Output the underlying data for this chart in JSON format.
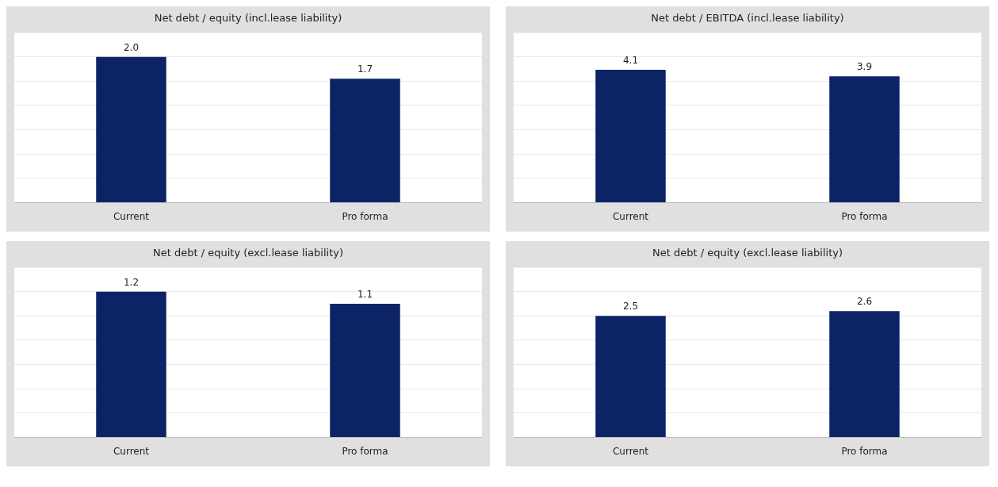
{
  "chart_data": [
    {
      "type": "bar",
      "title": "Net debt / equity (incl.lease liability)",
      "categories": [
        "Current",
        "Pro forma"
      ],
      "values": [
        2.0,
        1.7
      ],
      "value_labels": [
        "2.0",
        "1.7"
      ],
      "color": "#0c2366",
      "grid": "y",
      "tick_labels": "x"
    },
    {
      "type": "bar",
      "title": "Net debt / EBITDA (incl.lease liability)",
      "categories": [
        "Current",
        "Pro forma"
      ],
      "values": [
        4.1,
        3.9
      ],
      "value_labels": [
        "4.1",
        "3.9"
      ],
      "color": "#0c2366",
      "grid": "y",
      "tick_labels": "x"
    },
    {
      "type": "bar",
      "title": "Net debt / equity (excl.lease liability)",
      "categories": [
        "Current",
        "Pro forma"
      ],
      "values": [
        1.2,
        1.1
      ],
      "value_labels": [
        "1.2",
        "1.1"
      ],
      "color": "#0c2366",
      "grid": "y",
      "tick_labels": "x"
    },
    {
      "type": "bar",
      "title": "Net debt / equity (excl.lease liability)",
      "categories": [
        "Current",
        "Pro forma"
      ],
      "values": [
        2.5,
        2.6
      ],
      "value_labels": [
        "2.5",
        "2.6"
      ],
      "color": "#0c2366",
      "grid": "y",
      "tick_labels": "x"
    }
  ]
}
